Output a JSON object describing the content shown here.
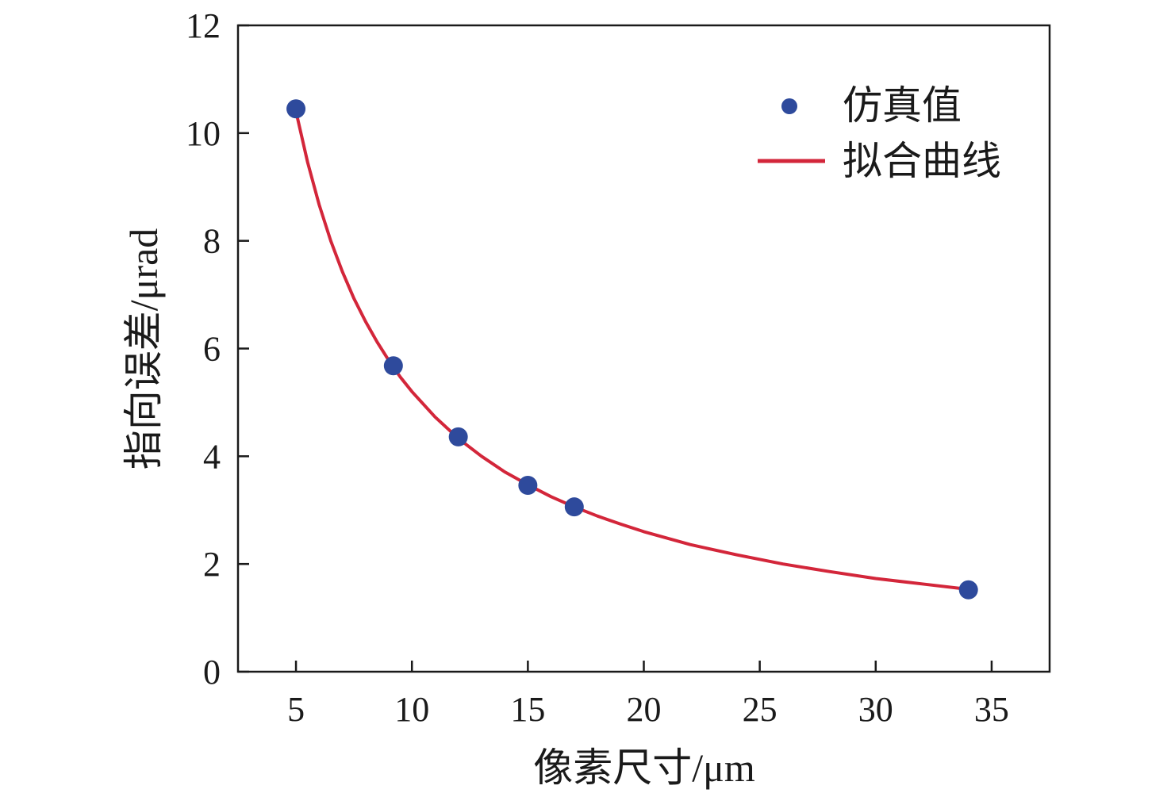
{
  "chart_data": {
    "type": "scatter",
    "xlabel": "像素尺寸/μm",
    "ylabel": "指向误差/μrad",
    "xlim": [
      2.5,
      37.5
    ],
    "ylim": [
      0,
      12
    ],
    "xticks": [
      5,
      10,
      15,
      20,
      25,
      30,
      35
    ],
    "yticks": [
      0,
      2,
      4,
      6,
      8,
      10,
      12
    ],
    "grid": false,
    "legend_position": "top-right",
    "series": [
      {
        "name": "仿真值",
        "kind": "scatter",
        "color": "#2e4a9c",
        "points": [
          {
            "x": 5,
            "y": 10.45
          },
          {
            "x": 9.2,
            "y": 5.68
          },
          {
            "x": 12,
            "y": 4.36
          },
          {
            "x": 15,
            "y": 3.46
          },
          {
            "x": 17,
            "y": 3.06
          },
          {
            "x": 34,
            "y": 1.52
          }
        ]
      },
      {
        "name": "拟合曲线",
        "kind": "line",
        "color": "#d3263a",
        "x": [
          5,
          5.5,
          6,
          6.5,
          7,
          7.5,
          8,
          8.5,
          9,
          9.5,
          10,
          11,
          12,
          13,
          14,
          15,
          16,
          17,
          18,
          19,
          20,
          22,
          24,
          26,
          28,
          30,
          32,
          34
        ],
        "y": [
          10.4,
          9.46,
          8.67,
          8.0,
          7.43,
          6.93,
          6.5,
          6.12,
          5.78,
          5.47,
          5.2,
          4.73,
          4.33,
          4.0,
          3.71,
          3.47,
          3.25,
          3.06,
          2.89,
          2.74,
          2.6,
          2.36,
          2.17,
          2.0,
          1.86,
          1.73,
          1.63,
          1.53
        ]
      }
    ]
  }
}
